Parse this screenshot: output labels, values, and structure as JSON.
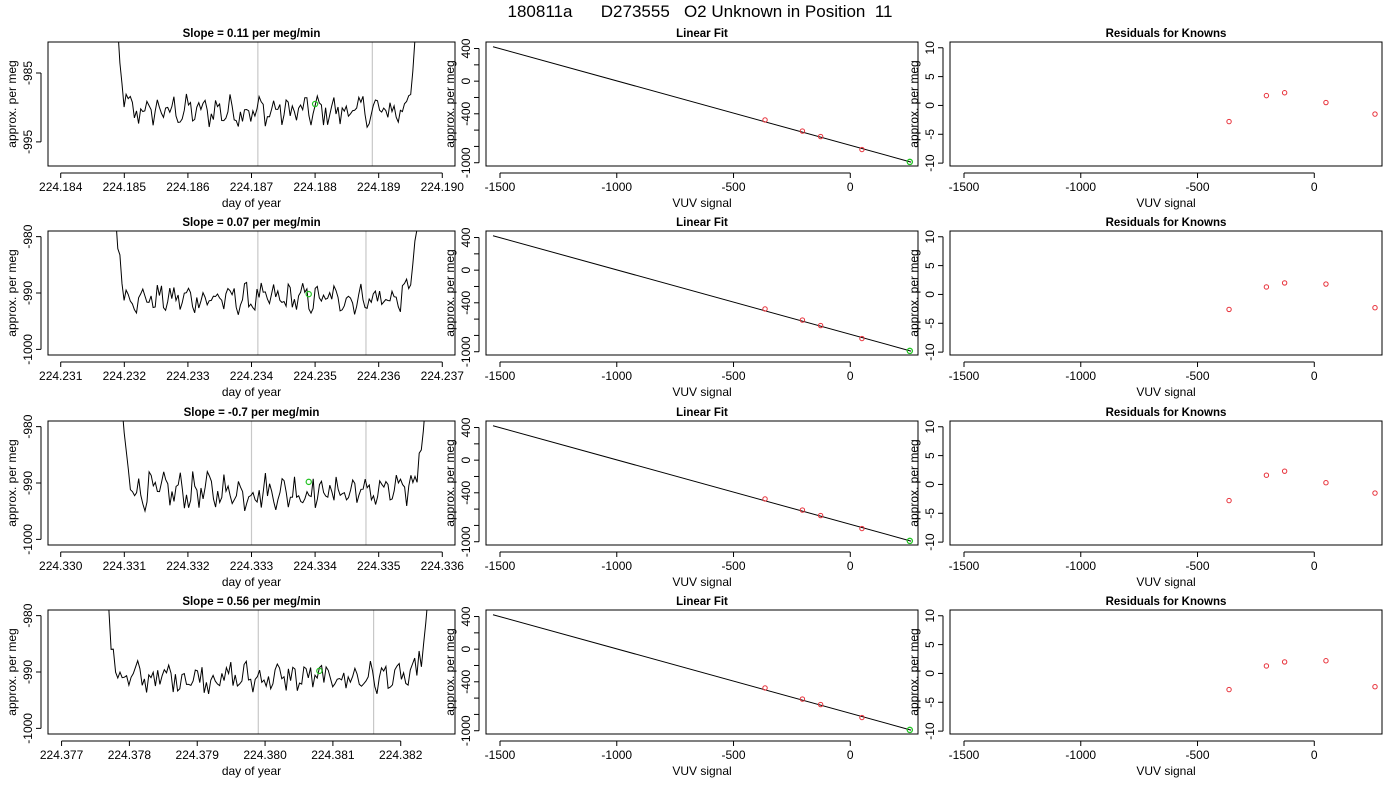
{
  "title": "180811a      D273555   O2 Unknown in Position  11",
  "colors": {
    "trace": "#000000",
    "known_points": "#e8313a",
    "unknown_point": "#22c322",
    "vline": "#c8c8c8",
    "axis": "#000000"
  },
  "chart_data": [
    {
      "panel": "row1-col1",
      "type": "line",
      "title": "Slope =  0.11  per meg/min",
      "xlabel": "day of year",
      "ylabel": "approx. per meg",
      "xlim": [
        224.1838,
        224.1902
      ],
      "ylim": [
        -998.5,
        -980.5
      ],
      "xticks": [
        224.184,
        224.185,
        224.186,
        224.187,
        224.188,
        224.189,
        224.19
      ],
      "xtick_labels": [
        "224.184",
        "224.185",
        "224.186",
        "224.187",
        "224.188",
        "224.189",
        "224.190"
      ],
      "yticks": [
        -995,
        -985
      ],
      "ytick_labels": [
        "-995",
        "-985"
      ],
      "x_start": 224.1848,
      "x_end": 224.1897,
      "trace_base": -990.5,
      "trace_amplitude": 1.7,
      "vlines": [
        224.1871,
        224.1889
      ],
      "marker": {
        "x": 224.188,
        "y": -989.5
      }
    },
    {
      "panel": "row1-col2",
      "type": "scatter",
      "title": "Linear Fit",
      "xlabel": "VUV signal",
      "ylabel": "approx. per meg",
      "xlim": [
        -1560,
        290
      ],
      "ylim": [
        -1040,
        480
      ],
      "xticks": [
        -1500,
        -1000,
        -500,
        0
      ],
      "xtick_labels": [
        "-1500",
        "-1000",
        "-500",
        "0"
      ],
      "yticks": [
        400,
        200,
        0,
        -200,
        -400,
        -600,
        -800,
        -1000
      ],
      "ytick_labels": [
        "400",
        "",
        "0",
        "",
        "-400",
        "",
        "",
        "-1000"
      ],
      "fit_line": {
        "x": [
          -1530,
          260
        ],
        "y": [
          422,
          -992
        ]
      },
      "known_points": {
        "x": [
          -365,
          -205,
          -127,
          50
        ],
        "y": [
          -475,
          -612,
          -679,
          -838
        ]
      },
      "unknown_point": {
        "x": 255,
        "y": -990
      }
    },
    {
      "panel": "row1-col3",
      "type": "scatter",
      "title": "Residuals for Knowns",
      "xlabel": "VUV signal",
      "ylabel": "approx. per meg",
      "xlim": [
        -1560,
        290
      ],
      "ylim": [
        -10.5,
        11
      ],
      "xticks": [
        -1500,
        -1000,
        -500,
        0
      ],
      "xtick_labels": [
        "-1500",
        "-1000",
        "-500",
        "0"
      ],
      "yticks": [
        10,
        5,
        0,
        -5,
        -10
      ],
      "ytick_labels": [
        "10",
        "5",
        "0",
        "-5",
        "-10"
      ],
      "points": {
        "x": [
          -365,
          -205,
          -127,
          50,
          260
        ],
        "y": [
          -2.8,
          1.7,
          2.2,
          0.5,
          -1.5
        ]
      }
    },
    {
      "panel": "row2-col1",
      "type": "line",
      "title": "Slope =  0.07  per meg/min",
      "xlabel": "day of year",
      "ylabel": "approx. per meg",
      "xlim": [
        224.2308,
        224.2372
      ],
      "ylim": [
        -1001,
        -979
      ],
      "xticks": [
        224.231,
        224.232,
        224.233,
        224.234,
        224.235,
        224.236,
        224.237
      ],
      "xtick_labels": [
        "224.231",
        "224.232",
        "224.233",
        "224.234",
        "224.235",
        "224.236",
        "224.237"
      ],
      "yticks": [
        -1000,
        -990,
        -980
      ],
      "ytick_labels": [
        "-1000",
        "-990",
        "-980"
      ],
      "x_start": 224.2318,
      "x_end": 224.2367,
      "trace_base": -991,
      "trace_amplitude": 1.9,
      "vlines": [
        224.2341,
        224.2358
      ],
      "marker": {
        "x": 224.2349,
        "y": -990.2
      }
    },
    {
      "panel": "row2-col2",
      "type": "scatter",
      "title": "Linear Fit",
      "xlabel": "VUV signal",
      "ylabel": "approx. per meg",
      "xlim": [
        -1560,
        290
      ],
      "ylim": [
        -1040,
        480
      ],
      "xticks": [
        -1500,
        -1000,
        -500,
        0
      ],
      "xtick_labels": [
        "-1500",
        "-1000",
        "-500",
        "0"
      ],
      "yticks": [
        400,
        200,
        0,
        -200,
        -400,
        -600,
        -800,
        -1000
      ],
      "ytick_labels": [
        "400",
        "",
        "0",
        "",
        "-400",
        "",
        "",
        "-1000"
      ],
      "fit_line": {
        "x": [
          -1530,
          260
        ],
        "y": [
          422,
          -992
        ]
      },
      "known_points": {
        "x": [
          -365,
          -205,
          -127,
          50
        ],
        "y": [
          -475,
          -612,
          -679,
          -838
        ]
      },
      "unknown_point": {
        "x": 255,
        "y": -990
      }
    },
    {
      "panel": "row2-col3",
      "type": "scatter",
      "title": "Residuals for Knowns",
      "xlabel": "VUV signal",
      "ylabel": "approx. per meg",
      "xlim": [
        -1560,
        290
      ],
      "ylim": [
        -10.5,
        11
      ],
      "xticks": [
        -1500,
        -1000,
        -500,
        0
      ],
      "xtick_labels": [
        "-1500",
        "-1000",
        "-500",
        "0"
      ],
      "yticks": [
        10,
        5,
        0,
        -5,
        -10
      ],
      "ytick_labels": [
        "10",
        "5",
        "0",
        "-5",
        "-10"
      ],
      "points": {
        "x": [
          -365,
          -205,
          -127,
          50,
          260
        ],
        "y": [
          -2.6,
          1.3,
          2.0,
          1.8,
          -2.3
        ]
      }
    },
    {
      "panel": "row3-col1",
      "type": "line",
      "title": "Slope =  -0.7  per meg/min",
      "xlabel": "day of year",
      "ylabel": "approx. per meg",
      "xlim": [
        224.3298,
        224.3362
      ],
      "ylim": [
        -1001,
        -979
      ],
      "xticks": [
        224.33,
        224.331,
        224.332,
        224.333,
        224.334,
        224.335,
        224.336
      ],
      "xtick_labels": [
        "224.330",
        "224.331",
        "224.332",
        "224.333",
        "224.334",
        "224.335",
        "224.336"
      ],
      "yticks": [
        -1000,
        -990,
        -980
      ],
      "ytick_labels": [
        "-1000",
        "-990",
        "-980"
      ],
      "x_start": 224.3309,
      "x_end": 224.3358,
      "trace_base": -991.5,
      "trace_amplitude": 2.4,
      "vlines": [
        224.333,
        224.3348
      ],
      "marker": {
        "x": 224.3339,
        "y": -989.8
      }
    },
    {
      "panel": "row3-col2",
      "type": "scatter",
      "title": "Linear Fit",
      "xlabel": "VUV signal",
      "ylabel": "approx. per meg",
      "xlim": [
        -1560,
        290
      ],
      "ylim": [
        -1040,
        480
      ],
      "xticks": [
        -1500,
        -1000,
        -500,
        0
      ],
      "xtick_labels": [
        "-1500",
        "-1000",
        "-500",
        "0"
      ],
      "yticks": [
        400,
        200,
        0,
        -200,
        -400,
        -600,
        -800,
        -1000
      ],
      "ytick_labels": [
        "400",
        "",
        "0",
        "",
        "-400",
        "",
        "",
        "-1000"
      ],
      "fit_line": {
        "x": [
          -1530,
          260
        ],
        "y": [
          422,
          -992
        ]
      },
      "known_points": {
        "x": [
          -365,
          -205,
          -127,
          50
        ],
        "y": [
          -475,
          -612,
          -679,
          -838
        ]
      },
      "unknown_point": {
        "x": 255,
        "y": -990
      }
    },
    {
      "panel": "row3-col3",
      "type": "scatter",
      "title": "Residuals for Knowns",
      "xlabel": "VUV signal",
      "ylabel": "approx. per meg",
      "xlim": [
        -1560,
        290
      ],
      "ylim": [
        -10.5,
        11
      ],
      "xticks": [
        -1500,
        -1000,
        -500,
        0
      ],
      "xtick_labels": [
        "-1500",
        "-1000",
        "-500",
        "0"
      ],
      "yticks": [
        10,
        5,
        0,
        -5,
        -10
      ],
      "ytick_labels": [
        "10",
        "5",
        "0",
        "-5",
        "-10"
      ],
      "points": {
        "x": [
          -365,
          -205,
          -127,
          50,
          260
        ],
        "y": [
          -2.8,
          1.6,
          2.3,
          0.3,
          -1.5
        ]
      }
    },
    {
      "panel": "row4-col1",
      "type": "line",
      "title": "Slope =  0.56  per meg/min",
      "xlabel": "day of year",
      "ylabel": "approx. per meg",
      "xlim": [
        224.3768,
        224.3828
      ],
      "ylim": [
        -1001,
        -979
      ],
      "xticks": [
        224.377,
        224.378,
        224.379,
        224.38,
        224.381,
        224.382
      ],
      "xtick_labels": [
        "224.377",
        "224.378",
        "224.379",
        "224.380",
        "224.381",
        "224.382"
      ],
      "yticks": [
        -1000,
        -990,
        -980
      ],
      "ytick_labels": [
        "-1000",
        "-990",
        "-980"
      ],
      "x_start": 224.3776,
      "x_end": 224.3825,
      "trace_base": -991,
      "trace_amplitude": 2.1,
      "vlines": [
        224.3799,
        224.3816
      ],
      "marker": {
        "x": 224.3808,
        "y": -989.8
      }
    },
    {
      "panel": "row4-col2",
      "type": "scatter",
      "title": "Linear Fit",
      "xlabel": "VUV signal",
      "ylabel": "approx. per meg",
      "xlim": [
        -1560,
        290
      ],
      "ylim": [
        -1040,
        480
      ],
      "xticks": [
        -1500,
        -1000,
        -500,
        0
      ],
      "xtick_labels": [
        "-1500",
        "-1000",
        "-500",
        "0"
      ],
      "yticks": [
        400,
        200,
        0,
        -200,
        -400,
        -600,
        -800,
        -1000
      ],
      "ytick_labels": [
        "400",
        "",
        "0",
        "",
        "-400",
        "",
        "",
        "-1000"
      ],
      "fit_line": {
        "x": [
          -1530,
          260
        ],
        "y": [
          422,
          -992
        ]
      },
      "known_points": {
        "x": [
          -365,
          -205,
          -127,
          50
        ],
        "y": [
          -475,
          -612,
          -679,
          -838
        ]
      },
      "unknown_point": {
        "x": 255,
        "y": -990
      }
    },
    {
      "panel": "row4-col3",
      "type": "scatter",
      "title": "Residuals for Knowns",
      "xlabel": "VUV signal",
      "ylabel": "approx. per meg",
      "xlim": [
        -1560,
        290
      ],
      "ylim": [
        -10.5,
        11
      ],
      "xticks": [
        -1500,
        -1000,
        -500,
        0
      ],
      "xtick_labels": [
        "-1500",
        "-1000",
        "-500",
        "0"
      ],
      "yticks": [
        10,
        5,
        0,
        -5,
        -10
      ],
      "ytick_labels": [
        "10",
        "5",
        "0",
        "-5",
        "-10"
      ],
      "points": {
        "x": [
          -365,
          -205,
          -127,
          50,
          260
        ],
        "y": [
          -2.8,
          1.3,
          2.0,
          2.2,
          -2.3
        ]
      }
    }
  ]
}
